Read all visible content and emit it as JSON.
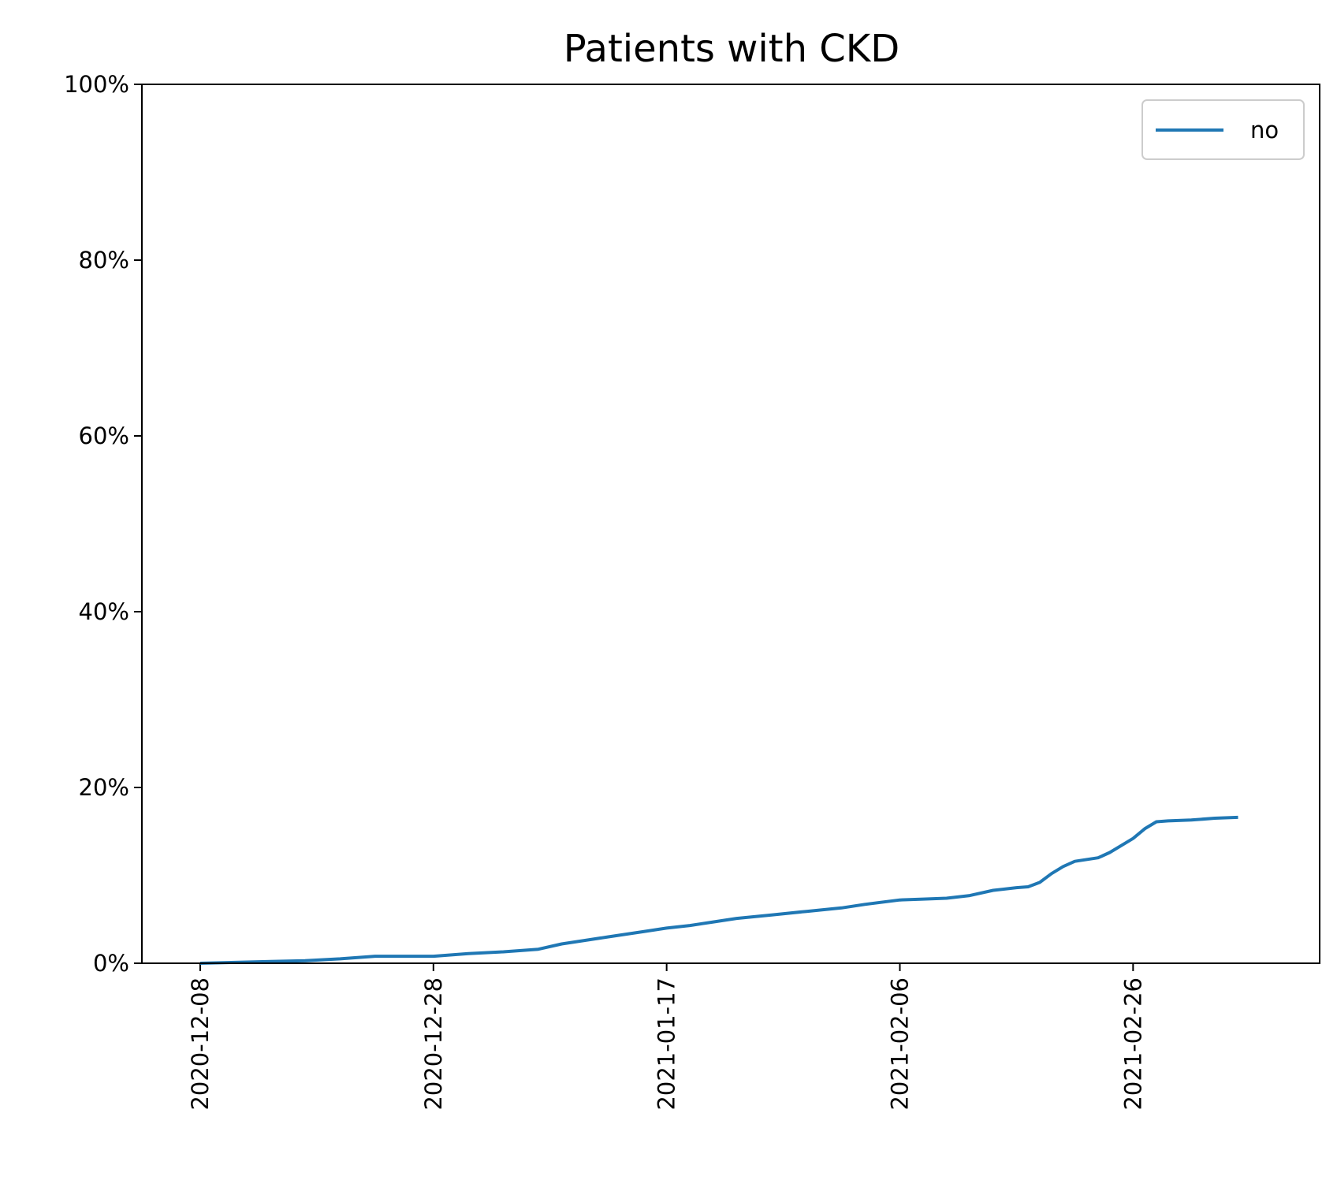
{
  "chart_data": {
    "type": "line",
    "title": "Patients with CKD",
    "xlabel": "",
    "ylabel": "",
    "y_tick_format": "percent",
    "ylim": [
      0,
      100
    ],
    "y_ticks": [
      0,
      20,
      40,
      60,
      80,
      100
    ],
    "y_tick_labels": [
      "0%",
      "20%",
      "40%",
      "60%",
      "80%",
      "100%"
    ],
    "xlim": [
      "2020-12-03",
      "2021-03-14"
    ],
    "x_ticks": [
      "2020-12-08",
      "2020-12-28",
      "2021-01-17",
      "2021-02-06",
      "2021-02-26"
    ],
    "x_tick_rotation": 90,
    "grid": false,
    "legend": {
      "placement": "upper-right",
      "entries": [
        "no"
      ]
    },
    "colors": {
      "no": "#1f77b4"
    },
    "series": [
      {
        "name": "no",
        "x": [
          "2020-12-08",
          "2020-12-11",
          "2020-12-14",
          "2020-12-17",
          "2020-12-20",
          "2020-12-23",
          "2020-12-25",
          "2020-12-28",
          "2020-12-29",
          "2020-12-31",
          "2021-01-03",
          "2021-01-06",
          "2021-01-08",
          "2021-01-10",
          "2021-01-12",
          "2021-01-15",
          "2021-01-17",
          "2021-01-19",
          "2021-01-21",
          "2021-01-23",
          "2021-01-26",
          "2021-01-29",
          "2021-02-01",
          "2021-02-03",
          "2021-02-06",
          "2021-02-08",
          "2021-02-10",
          "2021-02-12",
          "2021-02-14",
          "2021-02-16",
          "2021-02-17",
          "2021-02-18",
          "2021-02-19",
          "2021-02-20",
          "2021-02-21",
          "2021-02-23",
          "2021-02-24",
          "2021-02-26",
          "2021-02-27",
          "2021-02-28",
          "2021-03-01",
          "2021-03-03",
          "2021-03-05",
          "2021-03-07"
        ],
        "values": [
          0.0,
          0.1,
          0.2,
          0.3,
          0.5,
          0.8,
          0.8,
          0.8,
          0.9,
          1.1,
          1.3,
          1.6,
          2.2,
          2.6,
          3.0,
          3.6,
          4.0,
          4.3,
          4.7,
          5.1,
          5.5,
          5.9,
          6.3,
          6.7,
          7.2,
          7.3,
          7.4,
          7.7,
          8.3,
          8.6,
          8.7,
          9.2,
          10.2,
          11.0,
          11.6,
          12.0,
          12.6,
          14.2,
          15.3,
          16.1,
          16.2,
          16.3,
          16.5,
          16.6
        ]
      }
    ]
  }
}
